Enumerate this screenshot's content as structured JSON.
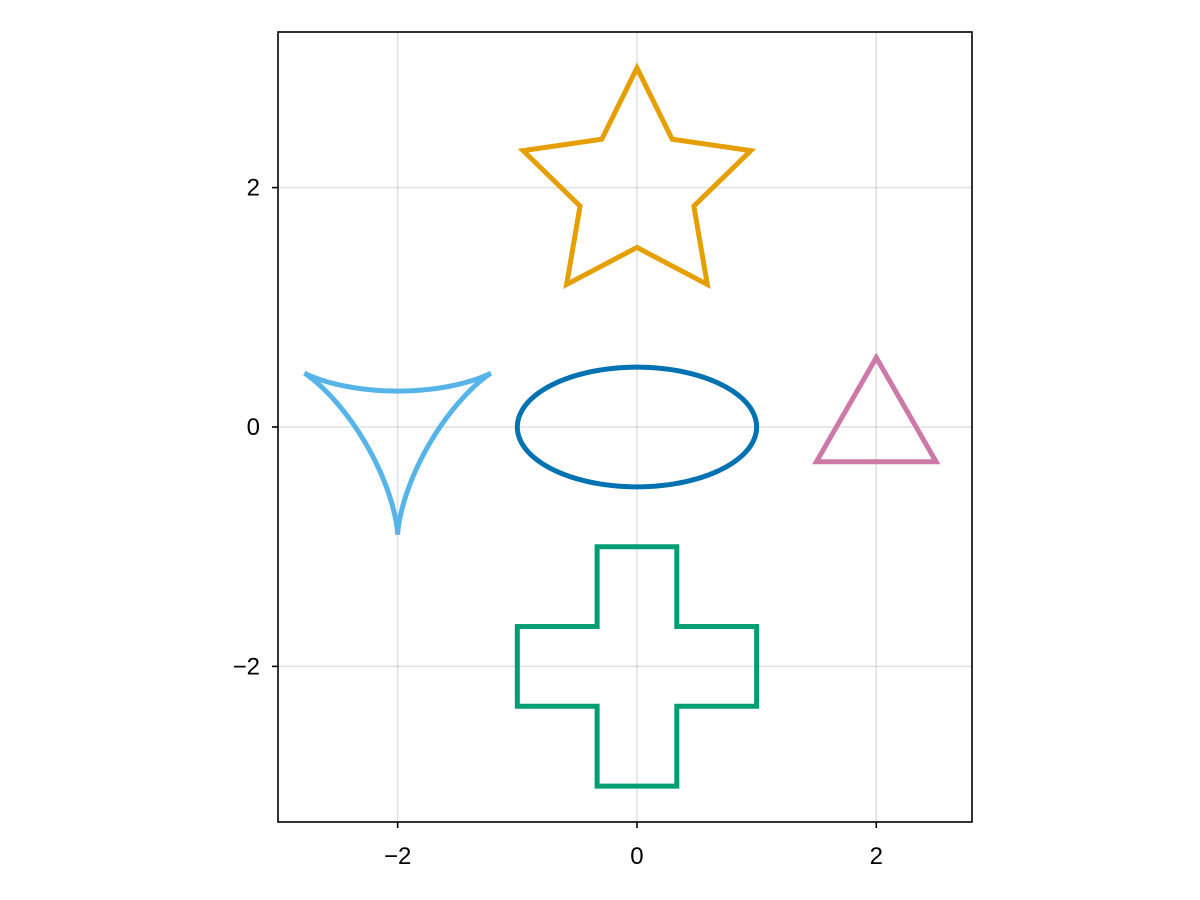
{
  "chart_data": {
    "type": "line",
    "title": "",
    "xlabel": "",
    "ylabel": "",
    "xlim": [
      -3.0,
      2.8
    ],
    "ylim": [
      -3.3,
      3.3
    ],
    "aspect": "equal",
    "grid": true,
    "legend": "none",
    "x_ticks": [
      -2,
      0,
      2
    ],
    "y_ticks": [
      -2,
      0,
      2
    ],
    "x_tick_labels": [
      "−2",
      "0",
      "2"
    ],
    "y_tick_labels": [
      "−2",
      "0",
      "2"
    ],
    "series": [
      {
        "kind": "ellipse",
        "color": "#0072B2",
        "center": [
          0,
          0
        ],
        "radii": [
          1.0,
          0.5
        ]
      },
      {
        "kind": "star",
        "color": "#E69F00",
        "center": [
          0,
          2
        ],
        "outer_radius": 1.0,
        "inner_radius": 0.5,
        "points": 5
      },
      {
        "kind": "cross",
        "color": "#009E73",
        "points": [
          [
            -0.333,
            -1.0
          ],
          [
            0.333,
            -1.0
          ],
          [
            0.333,
            -1.667
          ],
          [
            1.0,
            -1.667
          ],
          [
            1.0,
            -2.333
          ],
          [
            0.333,
            -2.333
          ],
          [
            0.333,
            -3.0
          ],
          [
            -0.333,
            -3.0
          ],
          [
            -0.333,
            -2.333
          ],
          [
            -1.0,
            -2.333
          ],
          [
            -1.0,
            -1.667
          ],
          [
            -0.333,
            -1.667
          ]
        ]
      },
      {
        "kind": "triangle",
        "color": "#CC79A7",
        "points": [
          [
            2.0,
            0.58
          ],
          [
            2.5,
            -0.29
          ],
          [
            1.5,
            -0.29
          ]
        ]
      },
      {
        "kind": "deltoid",
        "color": "#56B4E9",
        "center": [
          -2,
          0
        ],
        "radius": 0.3
      }
    ]
  }
}
